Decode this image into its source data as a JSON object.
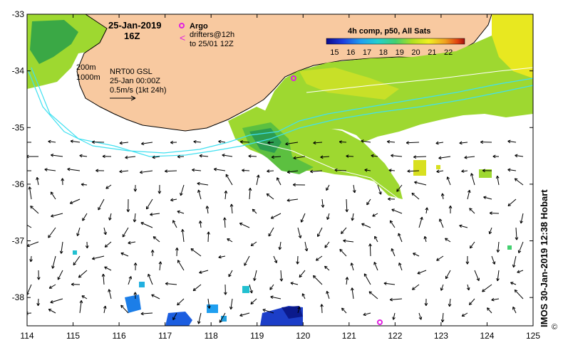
{
  "chart_data": {
    "type": "map",
    "title": {
      "date": "25-Jan-2019",
      "time": "16Z"
    },
    "legend": {
      "argo_label": "Argo",
      "drifters_line1": "drifters@12h",
      "drifters_line2": "to 25/01 12Z",
      "composite_label": "4h comp, p50, All Sats",
      "colorbar_ticks": [
        "15",
        "16",
        "17",
        "18",
        "19",
        "20",
        "21",
        "22"
      ],
      "colorbar_range": [
        14.5,
        23.0
      ],
      "colorbar_colors": [
        "#0b0b8c",
        "#1c3ee0",
        "#1fa0f0",
        "#22d0d0",
        "#44d070",
        "#b0e020",
        "#f0f020",
        "#f0a020",
        "#e04010",
        "#a01010"
      ]
    },
    "contour_info": {
      "line_200m": "200m",
      "line_1000m": "1000m",
      "source": "NRT00 GSL",
      "valid": "25-Jan 00:00Z",
      "scale": "0.5m/s (1kt 24h)"
    },
    "x_ticks": [
      "114",
      "115",
      "116",
      "117",
      "118",
      "119",
      "120",
      "121",
      "122",
      "123",
      "124",
      "125"
    ],
    "y_ticks": [
      "-33",
      "-34",
      "-35",
      "-36",
      "-37",
      "-38"
    ],
    "xlim": [
      114,
      125
    ],
    "ylim": [
      -38.5,
      -33
    ],
    "credit": "IMOS 30-Jan-2019 12:38 Hobart",
    "copyright": "©"
  },
  "colors": {
    "land": "#f8c9a0",
    "ocean": "#ffffff",
    "shelf_line": "#40e0f0",
    "arrow": "#000000",
    "argo": "#e020e0"
  }
}
